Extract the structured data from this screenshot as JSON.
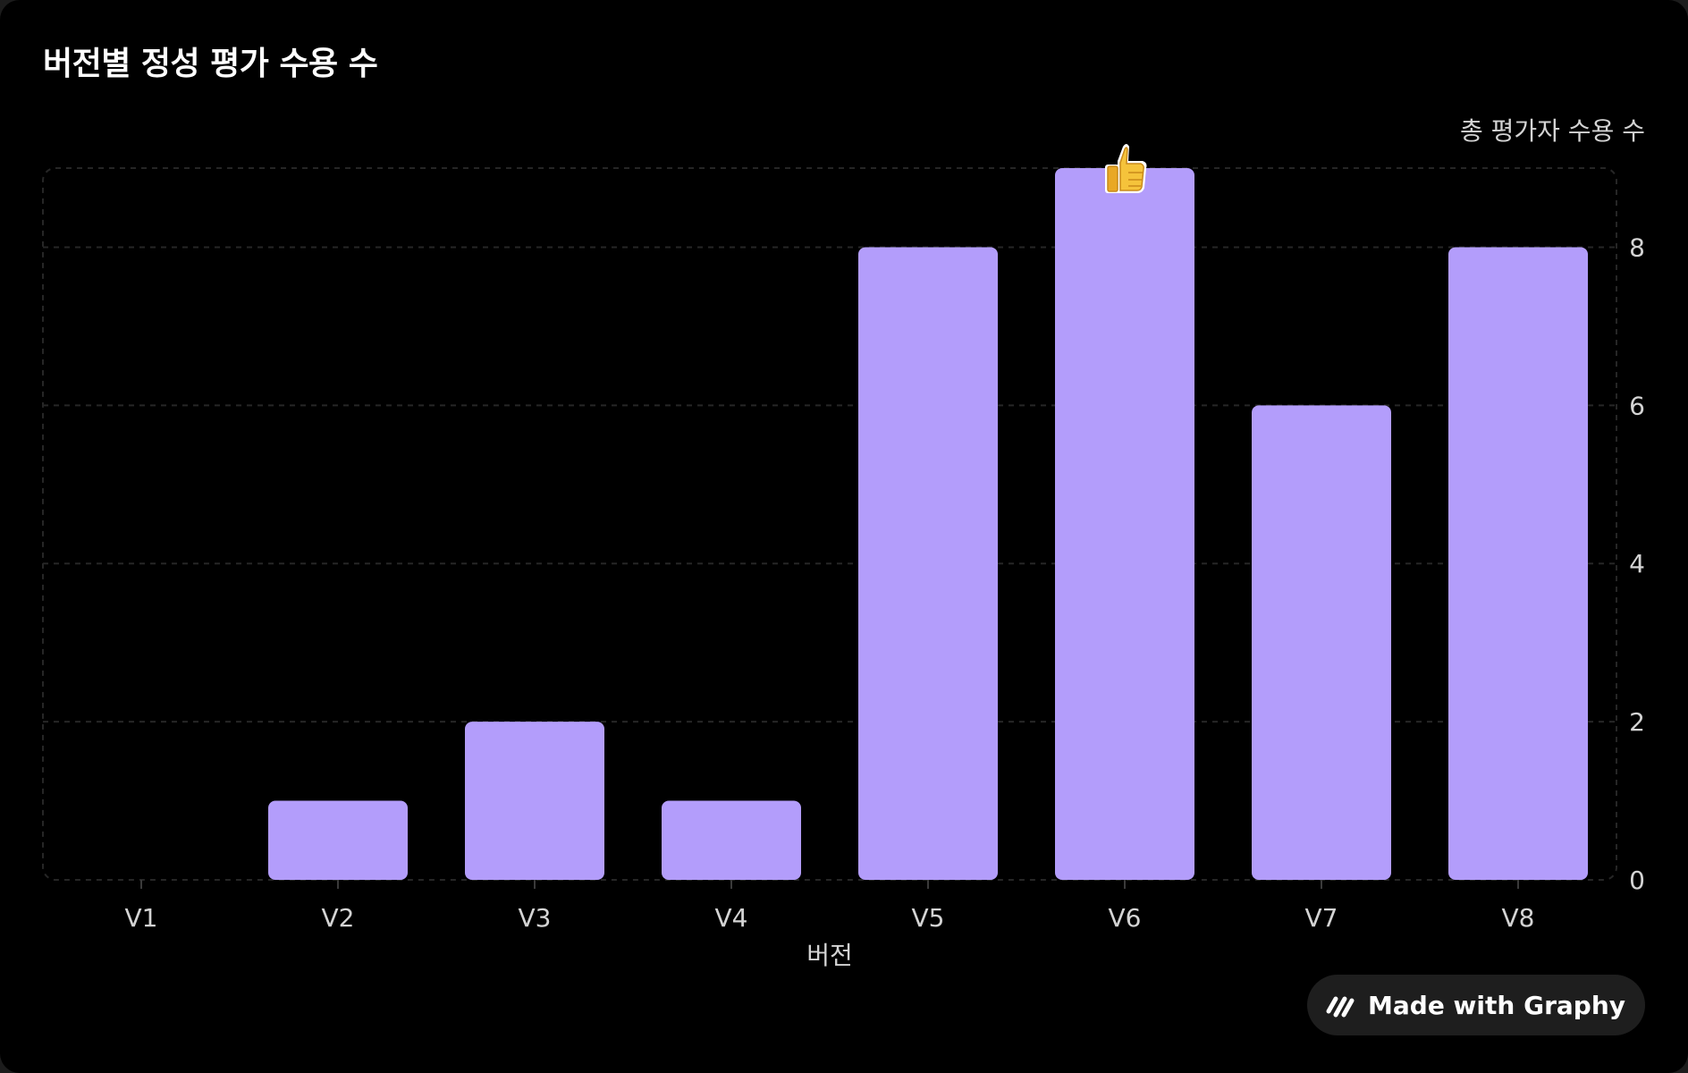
{
  "chart_data": {
    "type": "bar",
    "title": "버전별 정성 평가 수용 수",
    "xlabel": "버전",
    "ylabel": "총 평가자 수용 수",
    "categories": [
      "V1",
      "V2",
      "V3",
      "V4",
      "V5",
      "V6",
      "V7",
      "V8"
    ],
    "values": [
      0,
      1,
      2,
      1,
      8,
      9,
      6,
      8
    ],
    "ylim": [
      0,
      9
    ],
    "yticks": [
      0,
      2,
      4,
      6,
      8
    ],
    "y_axis_side": "right",
    "grid": true,
    "bar_color": "#b39dfb",
    "highlight": {
      "category": "V6",
      "icon": "thumbs-up-emoji"
    }
  },
  "badge": {
    "label": "Made with Graphy",
    "icon": "graphy-logo-icon"
  }
}
